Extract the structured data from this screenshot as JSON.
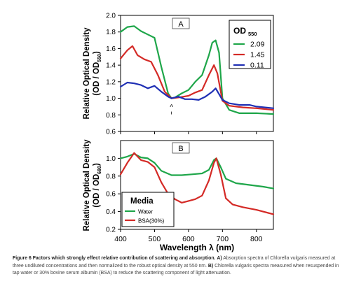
{
  "colors": {
    "green": "#1fa64a",
    "red": "#d42a26",
    "blue": "#1f2fb4",
    "axis": "#000000"
  },
  "caption": {
    "lead": "Figure 6 Factors which strongly effect relative contribution of scattering and absorption.",
    "a_label": "A)",
    "a_text": "Absorption spectra of Chlorella vulgaris measured at three undiluted concentrations and then normalized to the robust optical density at 550 nm.",
    "b_label": "B)",
    "b_text": "Chlorella vulgaris spectra measured when resuspended in tap water or 30% bovine serum albumin (BSA) to reduce the scattering component of light attenuation."
  },
  "chart_data": [
    {
      "type": "line",
      "panel_label": "A",
      "ylabel_line1": "Relative Optical Density",
      "ylabel_line2": "(OD / OD",
      "ylabel_sub": "550",
      "ylabel_close": ")",
      "ylim": [
        0.6,
        2.0
      ],
      "yticks": [
        "0.6",
        "0.8",
        "1.0",
        "1.2",
        "1.4",
        "1.6",
        "1.8",
        "2.0"
      ],
      "xlim": [
        400,
        850
      ],
      "legend_title": "OD",
      "legend_title_sub": "550",
      "legend_position": "top-right",
      "marker_label": "^",
      "marker_x": 550,
      "series": [
        {
          "name": "2.09",
          "color": "#1fa64a",
          "points": [
            [
              400,
              1.8
            ],
            [
              420,
              1.86
            ],
            [
              440,
              1.87
            ],
            [
              460,
              1.81
            ],
            [
              480,
              1.77
            ],
            [
              500,
              1.73
            ],
            [
              520,
              1.38
            ],
            [
              540,
              1.06
            ],
            [
              550,
              1.0
            ],
            [
              560,
              1.01
            ],
            [
              580,
              1.06
            ],
            [
              600,
              1.1
            ],
            [
              620,
              1.2
            ],
            [
              640,
              1.28
            ],
            [
              660,
              1.52
            ],
            [
              670,
              1.67
            ],
            [
              680,
              1.7
            ],
            [
              690,
              1.55
            ],
            [
              700,
              1.0
            ],
            [
              720,
              0.86
            ],
            [
              750,
              0.82
            ],
            [
              800,
              0.82
            ],
            [
              850,
              0.81
            ]
          ]
        },
        {
          "name": "1.45",
          "color": "#d42a26",
          "points": [
            [
              400,
              1.48
            ],
            [
              420,
              1.58
            ],
            [
              435,
              1.63
            ],
            [
              450,
              1.52
            ],
            [
              470,
              1.47
            ],
            [
              490,
              1.44
            ],
            [
              510,
              1.28
            ],
            [
              530,
              1.08
            ],
            [
              550,
              1.0
            ],
            [
              570,
              1.01
            ],
            [
              600,
              1.03
            ],
            [
              620,
              1.07
            ],
            [
              640,
              1.1
            ],
            [
              660,
              1.28
            ],
            [
              675,
              1.4
            ],
            [
              685,
              1.3
            ],
            [
              700,
              0.97
            ],
            [
              720,
              0.91
            ],
            [
              760,
              0.89
            ],
            [
              800,
              0.88
            ],
            [
              850,
              0.86
            ]
          ]
        },
        {
          "name": "0.11",
          "color": "#1f2fb4",
          "points": [
            [
              400,
              1.14
            ],
            [
              420,
              1.19
            ],
            [
              440,
              1.18
            ],
            [
              460,
              1.16
            ],
            [
              480,
              1.12
            ],
            [
              500,
              1.15
            ],
            [
              520,
              1.08
            ],
            [
              540,
              1.02
            ],
            [
              550,
              1.0
            ],
            [
              570,
              1.02
            ],
            [
              590,
              0.99
            ],
            [
              610,
              0.99
            ],
            [
              630,
              0.98
            ],
            [
              650,
              1.02
            ],
            [
              670,
              1.08
            ],
            [
              680,
              1.12
            ],
            [
              690,
              1.05
            ],
            [
              700,
              0.98
            ],
            [
              720,
              0.94
            ],
            [
              750,
              0.92
            ],
            [
              780,
              0.92
            ],
            [
              800,
              0.9
            ],
            [
              850,
              0.88
            ]
          ]
        }
      ]
    },
    {
      "type": "line",
      "panel_label": "B",
      "ylabel_line1": "Relative Optical Density",
      "ylabel_line2": "(OD / OD",
      "ylabel_sub": "680",
      "ylabel_close": ")",
      "ylim": [
        0.2,
        1.2
      ],
      "yticks": [
        "0.2",
        "0.4",
        "0.6",
        "0.8",
        "1.0"
      ],
      "xlim": [
        400,
        850
      ],
      "xticks": [
        "400",
        "500",
        "600",
        "700",
        "800"
      ],
      "xlabel": "Wavelength λ (nm)",
      "legend_title": "Media",
      "legend_position": "bottom-left",
      "series": [
        {
          "name": "Water",
          "color": "#1fa64a",
          "points": [
            [
              400,
              1.0
            ],
            [
              420,
              1.02
            ],
            [
              440,
              1.05
            ],
            [
              460,
              1.01
            ],
            [
              480,
              1.0
            ],
            [
              500,
              0.95
            ],
            [
              520,
              0.86
            ],
            [
              550,
              0.81
            ],
            [
              580,
              0.81
            ],
            [
              610,
              0.82
            ],
            [
              640,
              0.83
            ],
            [
              660,
              0.87
            ],
            [
              675,
              0.98
            ],
            [
              682,
              1.0
            ],
            [
              695,
              0.9
            ],
            [
              710,
              0.77
            ],
            [
              740,
              0.72
            ],
            [
              780,
              0.7
            ],
            [
              820,
              0.68
            ],
            [
              850,
              0.66
            ]
          ]
        },
        {
          "name": "BSA(30%)",
          "color": "#d42a26",
          "points": [
            [
              400,
              0.82
            ],
            [
              420,
              0.95
            ],
            [
              440,
              1.06
            ],
            [
              460,
              0.98
            ],
            [
              480,
              0.96
            ],
            [
              500,
              0.9
            ],
            [
              520,
              0.73
            ],
            [
              540,
              0.6
            ],
            [
              560,
              0.54
            ],
            [
              580,
              0.5
            ],
            [
              600,
              0.52
            ],
            [
              620,
              0.54
            ],
            [
              640,
              0.58
            ],
            [
              660,
              0.75
            ],
            [
              675,
              0.95
            ],
            [
              682,
              1.0
            ],
            [
              695,
              0.82
            ],
            [
              710,
              0.55
            ],
            [
              730,
              0.48
            ],
            [
              760,
              0.45
            ],
            [
              800,
              0.42
            ],
            [
              850,
              0.37
            ]
          ]
        }
      ]
    }
  ]
}
